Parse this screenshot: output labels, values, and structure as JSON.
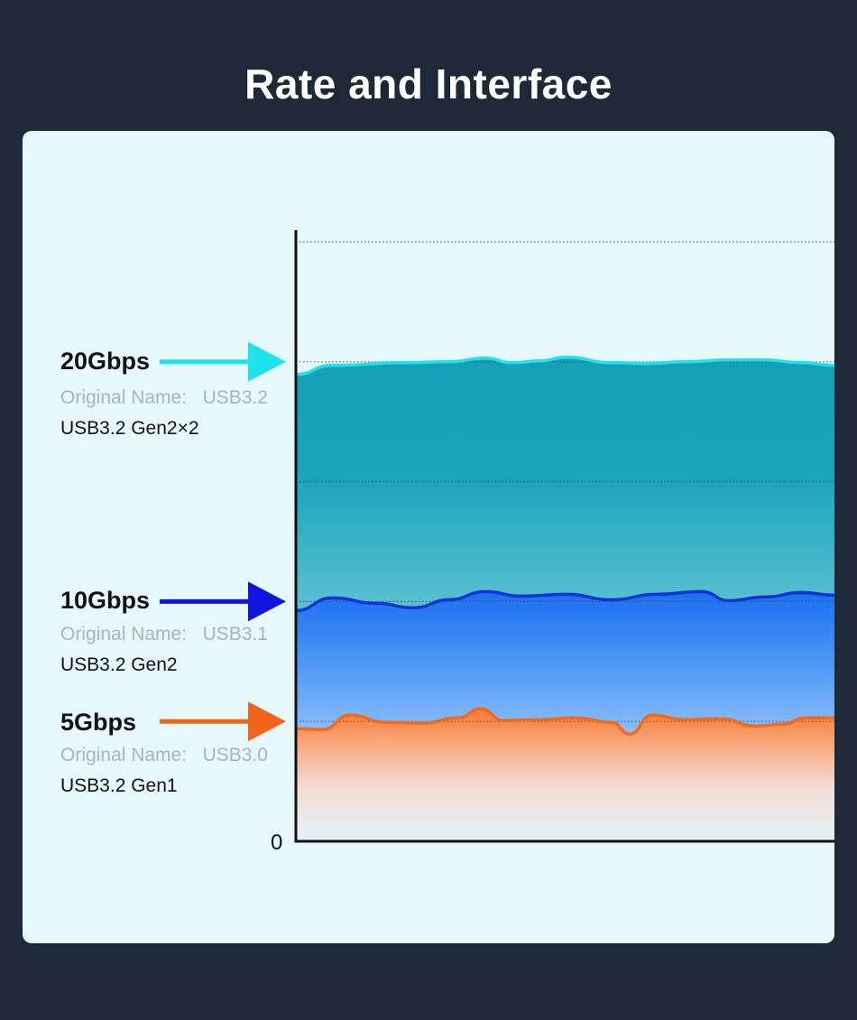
{
  "title": "Rate and Interface",
  "zero_label": "0",
  "tiers": [
    {
      "speed": "20Gbps",
      "original_prefix": "Original Name:",
      "original_name": "USB3.2",
      "generation": "USB3.2 Gen2×2",
      "color": "#22e0ec",
      "arrow_color": "#1fe3ea"
    },
    {
      "speed": "10Gbps",
      "original_prefix": "Original Name:",
      "original_name": "USB3.1",
      "generation": "USB3.2 Gen2",
      "color": "#1433d6",
      "arrow_color": "#0f16e0"
    },
    {
      "speed": "5Gbps",
      "original_prefix": "Original Name:",
      "original_name": "USB3.0",
      "generation": "USB3.2 Gen1",
      "color": "#f26a1c",
      "arrow_color": "#f2641a"
    }
  ],
  "chart_data": {
    "type": "area",
    "ylim": [
      0,
      25
    ],
    "y_gridlines": [
      5,
      10,
      15,
      20,
      25
    ],
    "series": [
      {
        "name": "20Gbps",
        "value": 20,
        "color": "#22e0ec",
        "fill": "#14a0b6"
      },
      {
        "name": "10Gbps",
        "value": 10,
        "color": "#1433d6",
        "fill": "#1a74f0"
      },
      {
        "name": "5Gbps",
        "value": 5,
        "color": "#f26a1c",
        "fill": "#f8844a"
      }
    ]
  }
}
